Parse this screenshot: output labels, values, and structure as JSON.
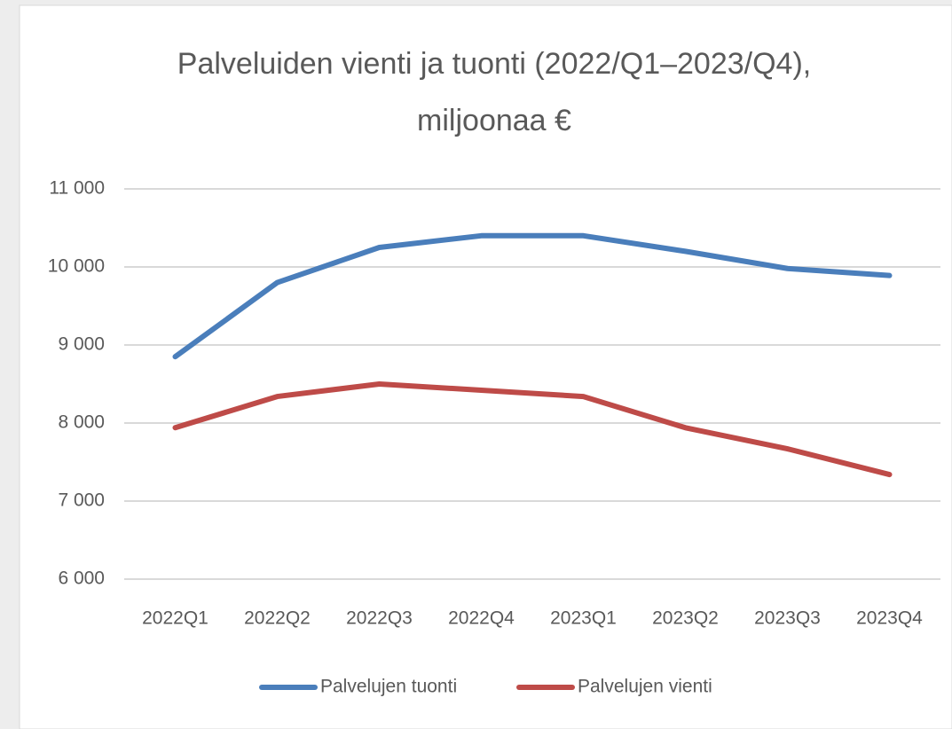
{
  "chart_data": {
    "type": "line",
    "title": [
      "Palveluiden vienti ja tuonti (2022/Q1–2023/Q4),",
      "miljoonaa €"
    ],
    "categories": [
      "2022Q1",
      "2022Q2",
      "2022Q3",
      "2022Q4",
      "2023Q1",
      "2023Q2",
      "2023Q3",
      "2023Q4"
    ],
    "series": [
      {
        "name": "Palvelujen tuonti",
        "color": "#4a7ebb",
        "values": [
          8850,
          9800,
          10250,
          10400,
          10400,
          10200,
          9980,
          9890
        ]
      },
      {
        "name": "Palvelujen vienti",
        "color": "#be4b48",
        "values": [
          7940,
          8340,
          8500,
          8420,
          8340,
          7940,
          7670,
          7340
        ]
      }
    ],
    "ylim": [
      6000,
      11000
    ],
    "yticks": [
      {
        "value": 6000,
        "label": "6 000"
      },
      {
        "value": 7000,
        "label": "7 000"
      },
      {
        "value": 8000,
        "label": "8 000"
      },
      {
        "value": 9000,
        "label": "9 000"
      },
      {
        "value": 10000,
        "label": "10 000"
      },
      {
        "value": 11000,
        "label": "11 000"
      }
    ],
    "grid": true,
    "legend": "bottom"
  }
}
